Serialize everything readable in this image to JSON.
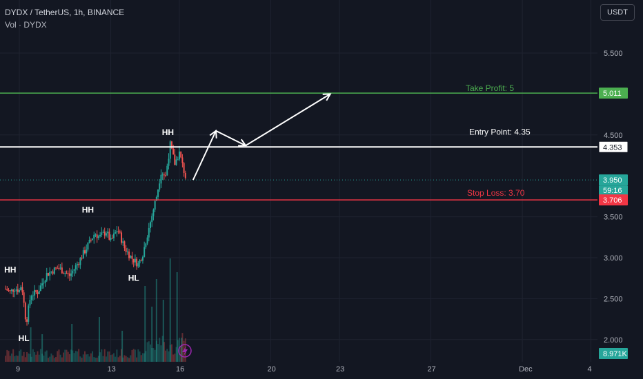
{
  "header": {
    "symbol_line": "DYDX / TetherUS, 1h, BINANCE",
    "volume_line": "Vol · DYDX",
    "currency": "USDT"
  },
  "colors": {
    "background": "#131722",
    "up": "#26a69a",
    "down": "#ef5350",
    "take_profit": "#4caf50",
    "entry": "#ffffff",
    "stop_loss": "#f23645",
    "grid": "#1f2330",
    "axis_text": "#b2b5be"
  },
  "chart_data": {
    "type": "candlestick",
    "symbol": "DYDX / TetherUS",
    "interval": "1h",
    "exchange": "BINANCE",
    "y_ticks": [
      "5.500",
      "4.500",
      "3.500",
      "3.000",
      "2.500",
      "2.000"
    ],
    "x_ticks": [
      "9",
      "13",
      "16",
      "20",
      "23",
      "27",
      "Dec",
      "4"
    ],
    "ylim": [
      1.75,
      5.9
    ],
    "x_range_days": [
      8.4,
      34.5
    ],
    "price_path": [
      [
        8.4,
        2.62
      ],
      [
        8.6,
        2.58
      ],
      [
        8.8,
        2.63
      ],
      [
        9.0,
        2.6
      ],
      [
        9.1,
        2.68
      ],
      [
        9.3,
        2.2
      ],
      [
        9.5,
        2.55
      ],
      [
        9.8,
        2.58
      ],
      [
        10.2,
        2.8
      ],
      [
        10.7,
        2.88
      ],
      [
        11.2,
        2.78
      ],
      [
        11.6,
        2.95
      ],
      [
        12.0,
        3.15
      ],
      [
        12.3,
        3.3
      ],
      [
        12.5,
        3.25
      ],
      [
        12.8,
        3.32
      ],
      [
        13.0,
        3.2
      ],
      [
        13.3,
        3.35
      ],
      [
        13.6,
        3.12
      ],
      [
        13.9,
        3.0
      ],
      [
        14.2,
        2.92
      ],
      [
        14.4,
        3.05
      ],
      [
        14.7,
        3.4
      ],
      [
        15.0,
        3.75
      ],
      [
        15.2,
        4.05
      ],
      [
        15.4,
        4.0
      ],
      [
        15.6,
        4.38
      ],
      [
        15.8,
        4.15
      ],
      [
        16.0,
        4.28
      ],
      [
        16.3,
        3.95
      ]
    ],
    "volume_bars": [
      [
        14.5,
        2.2
      ],
      [
        14.8,
        1.6
      ],
      [
        15.0,
        2.4
      ],
      [
        15.3,
        1.8
      ],
      [
        15.6,
        3.0
      ],
      [
        15.9,
        2.6
      ],
      [
        11.3,
        1.1
      ],
      [
        12.5,
        1.3
      ],
      [
        13.5,
        0.9
      ],
      [
        9.5,
        1.0
      ],
      [
        10.0,
        0.8
      ],
      [
        16.1,
        0.7
      ]
    ],
    "levels": {
      "take_profit": {
        "label": "Take Profit: 5",
        "value": 5.011,
        "badge": "5.011"
      },
      "entry": {
        "label": "Entry Point: 4.35",
        "value": 4.353,
        "badge": "4.353"
      },
      "stop_loss": {
        "label": "Stop Loss: 3.70",
        "value": 3.706,
        "badge": "3.706"
      }
    },
    "current_price": {
      "value": 3.95,
      "badge": "3.950",
      "countdown": "59:16"
    },
    "volume_badge": "8.971K",
    "annotations": [
      {
        "text": "HH",
        "day": 15.5,
        "price": 4.5
      },
      {
        "text": "HH",
        "day": 12.0,
        "price": 3.55
      },
      {
        "text": "HH",
        "day": 8.6,
        "price": 2.82
      },
      {
        "text": "HL",
        "day": 14.0,
        "price": 2.72
      },
      {
        "text": "HL",
        "day": 9.2,
        "price": 1.98
      }
    ],
    "projection_path": [
      [
        16.6,
        3.95
      ],
      [
        17.6,
        4.55
      ],
      [
        18.9,
        4.37
      ],
      [
        22.6,
        5.0
      ]
    ]
  }
}
